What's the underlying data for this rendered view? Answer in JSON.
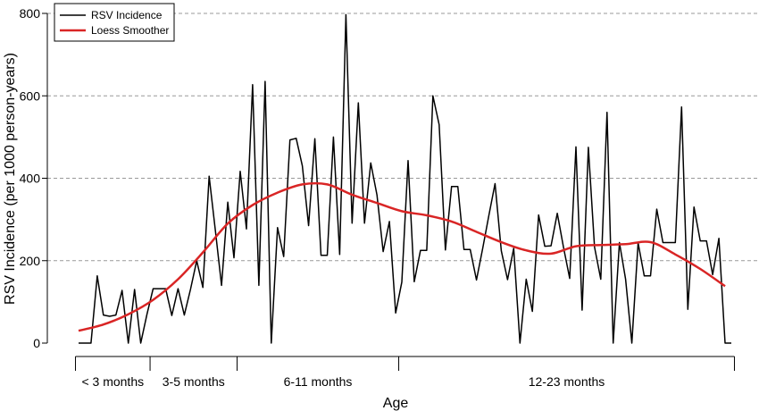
{
  "chart_data": {
    "type": "line",
    "title": "",
    "xlabel": "Age",
    "ylabel": "RSV Incidence (per 1000 person-years)",
    "ylim": [
      0,
      800
    ],
    "yticks": [
      0,
      200,
      400,
      600,
      800
    ],
    "grid": "horizontal dashed",
    "legend_position": "top-left",
    "age_groups": [
      {
        "label": "< 3 months",
        "start": 0,
        "end": 12
      },
      {
        "label": "3-5 months",
        "start": 12,
        "end": 26
      },
      {
        "label": "6-11 months",
        "start": 26,
        "end": 52
      },
      {
        "label": "12-23 months",
        "start": 52,
        "end": 106
      }
    ],
    "series": [
      {
        "name": "RSV Incidence",
        "color": "#000000",
        "values": [
          0,
          0,
          0,
          163,
          68,
          65,
          68,
          128,
          0,
          130,
          0,
          70,
          132,
          132,
          132,
          67,
          132,
          68,
          130,
          200,
          135,
          405,
          273,
          140,
          342,
          207,
          417,
          277,
          627,
          140,
          635,
          0,
          280,
          210,
          493,
          497,
          430,
          285,
          496,
          213,
          213,
          500,
          215,
          797,
          291,
          583,
          291,
          437,
          359,
          222,
          295,
          73,
          148,
          443,
          149,
          225,
          225,
          600,
          530,
          226,
          380,
          380,
          227,
          227,
          153,
          229,
          310,
          387,
          224,
          154,
          230,
          0,
          155,
          77,
          311,
          235,
          236,
          315,
          233,
          157,
          476,
          80,
          475,
          233,
          155,
          560,
          0,
          244,
          155,
          0,
          243,
          163,
          163,
          325,
          244,
          244,
          244,
          573,
          82,
          330,
          248,
          248,
          166,
          254,
          0,
          0
        ]
      },
      {
        "name": "Loess Smoother",
        "color": "#d92525",
        "x": [
          0,
          4,
          8,
          12,
          16,
          20,
          24,
          28,
          32,
          36,
          40,
          44,
          48,
          52,
          56,
          60,
          64,
          68,
          72,
          76,
          80,
          84,
          88,
          92,
          96,
          100,
          104
        ],
        "values": [
          30,
          45,
          70,
          105,
          155,
          220,
          290,
          335,
          365,
          385,
          385,
          360,
          340,
          320,
          310,
          295,
          270,
          245,
          225,
          217,
          235,
          238,
          240,
          245,
          215,
          180,
          138
        ]
      }
    ]
  }
}
